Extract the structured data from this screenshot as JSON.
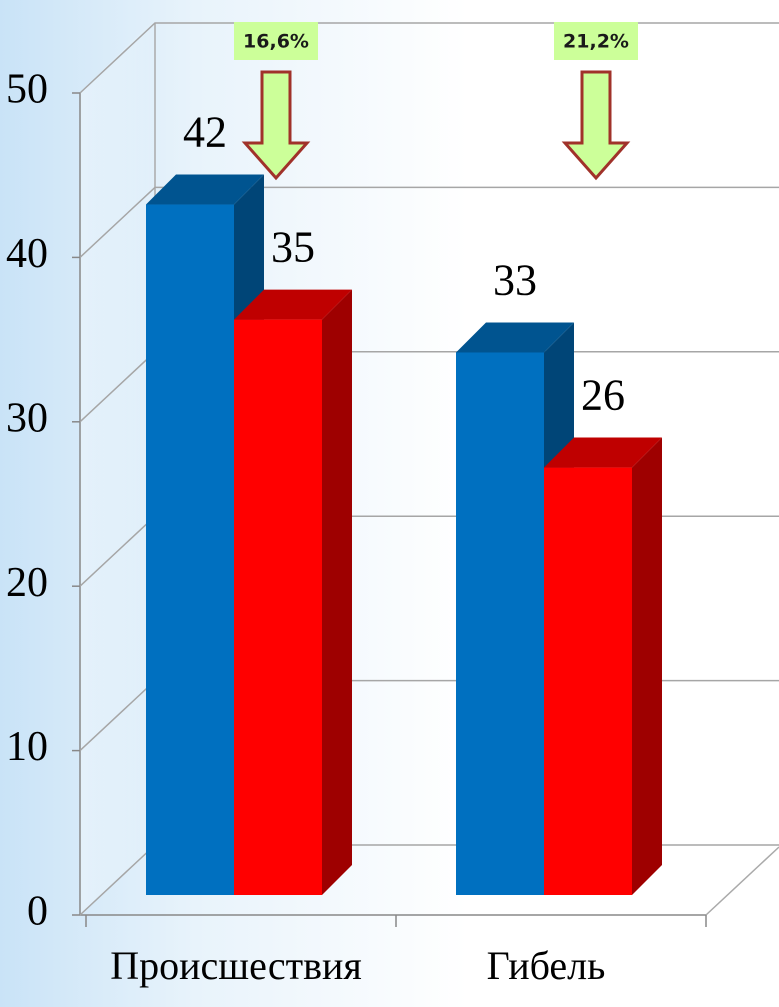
{
  "chart_data": {
    "type": "bar3d",
    "categories": [
      "Происшествия",
      "Гибель"
    ],
    "series": [
      {
        "color": "#0070c0",
        "values": [
          42,
          33
        ]
      },
      {
        "color": "#ff0000",
        "values": [
          35,
          26
        ]
      }
    ],
    "annotations": [
      "16,6%",
      "21,2%"
    ],
    "ylim": [
      0,
      50
    ],
    "yticks": [
      0,
      10,
      20,
      30,
      40,
      50
    ],
    "grid": true
  }
}
